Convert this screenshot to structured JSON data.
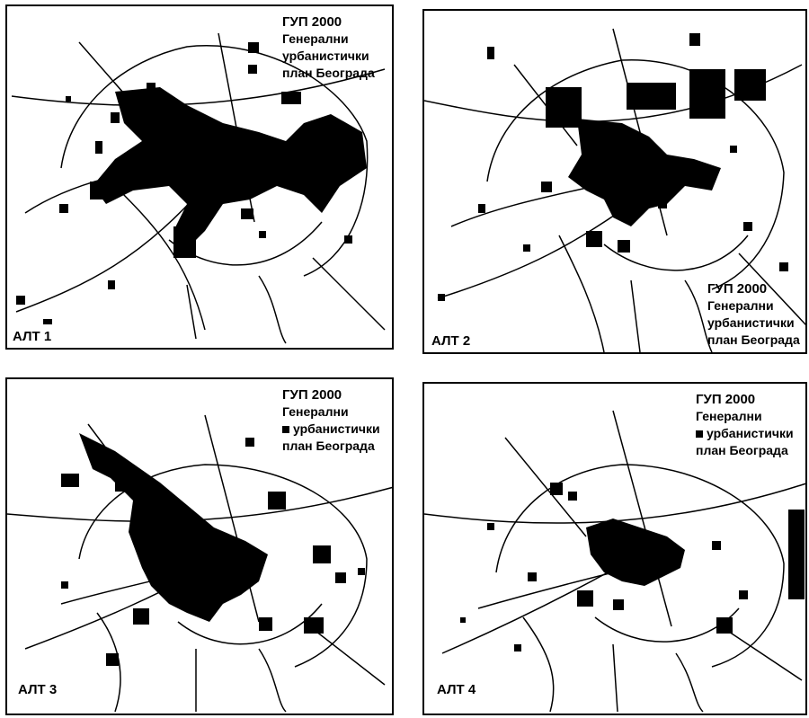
{
  "legend": {
    "title": "ГУП 2000",
    "line1": "Генерални",
    "line2": "урбанистички",
    "line3": "план Београда"
  },
  "panels": [
    {
      "label": "АЛТ 1"
    },
    {
      "label": "АЛТ 2"
    },
    {
      "label": "АЛТ 3"
    },
    {
      "label": "АЛТ 4"
    }
  ],
  "colors": {
    "ink": "#000000",
    "paper": "#ffffff"
  }
}
